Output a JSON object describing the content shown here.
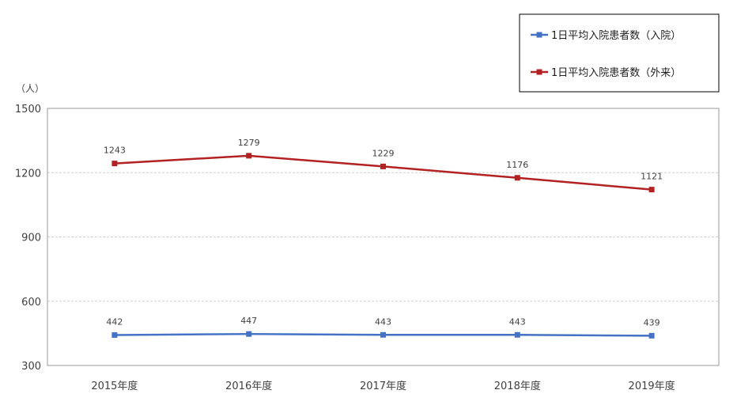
{
  "chart_data": {
    "type": "line",
    "title": "",
    "xlabel": "",
    "ylabel": "",
    "unit": "（人）",
    "categories": [
      "2015年度",
      "2016年度",
      "2017年度",
      "2018年度",
      "2019年度"
    ],
    "ylim": [
      300,
      1500
    ],
    "yticks": [
      300,
      600,
      900,
      1200,
      1500
    ],
    "grid": true,
    "legend_position": "top-right",
    "series": [
      {
        "name": "1日平均入院患者数（入院）",
        "color": "#4472C4",
        "values": [
          442,
          447,
          443,
          443,
          439
        ]
      },
      {
        "name": "1日平均入院患者数（外来）",
        "color": "#B22222",
        "values": [
          1243,
          1279,
          1229,
          1176,
          1121
        ]
      }
    ]
  }
}
